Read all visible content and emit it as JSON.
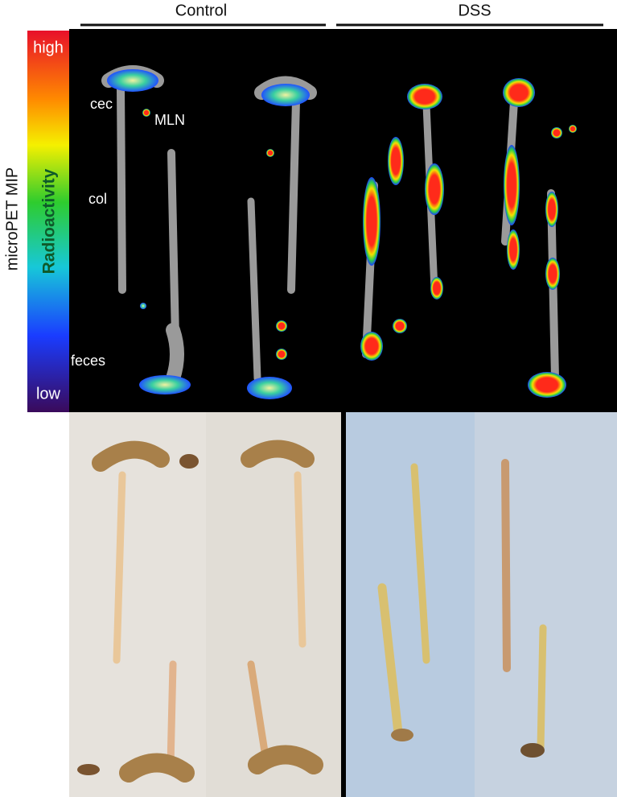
{
  "header": {
    "groups": [
      "Control",
      "DSS"
    ]
  },
  "y_axis_label": "microPET MIP",
  "colorbar": {
    "high": "high",
    "low": "low",
    "label": "Radioactivity"
  },
  "annotations": [
    "cec",
    "MLN",
    "col",
    "feces"
  ]
}
